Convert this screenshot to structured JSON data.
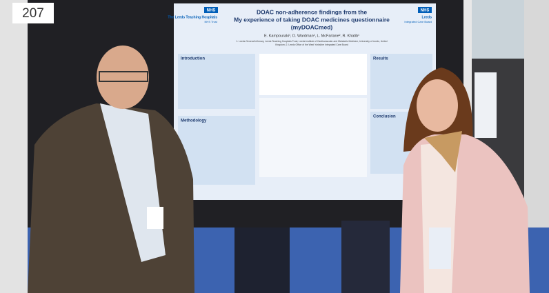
{
  "booth_number": "207",
  "poster": {
    "left_logo": {
      "badge": "NHS",
      "name": "The Leeds Teaching Hospitals",
      "trust": "NHS Trust"
    },
    "right_logo": {
      "badge": "NHS",
      "name": "Leeds",
      "subtitle": "Integrated Care Board"
    },
    "title_lines": [
      "DOAC non-adherence findings from the",
      "My experience of taking DOAC medicines questionnaire",
      "(myDOACmed)"
    ],
    "authors": "E. Kampouraki¹, D. Wardman², L. McFarlane², R. Khatib¹",
    "affiliations": [
      "1. Leeds General Infirmary, Leeds Teaching Hospitals Trust; Leeds Institute of Cardiovascular and Metabolic Medicine, University of Leeds, United",
      "Kingdom; 2. Leeds Office of the West Yorkshire Integrated Care Board"
    ],
    "sections": [
      "Introduction",
      "Methodology",
      "Results",
      "Conclusion"
    ]
  }
}
